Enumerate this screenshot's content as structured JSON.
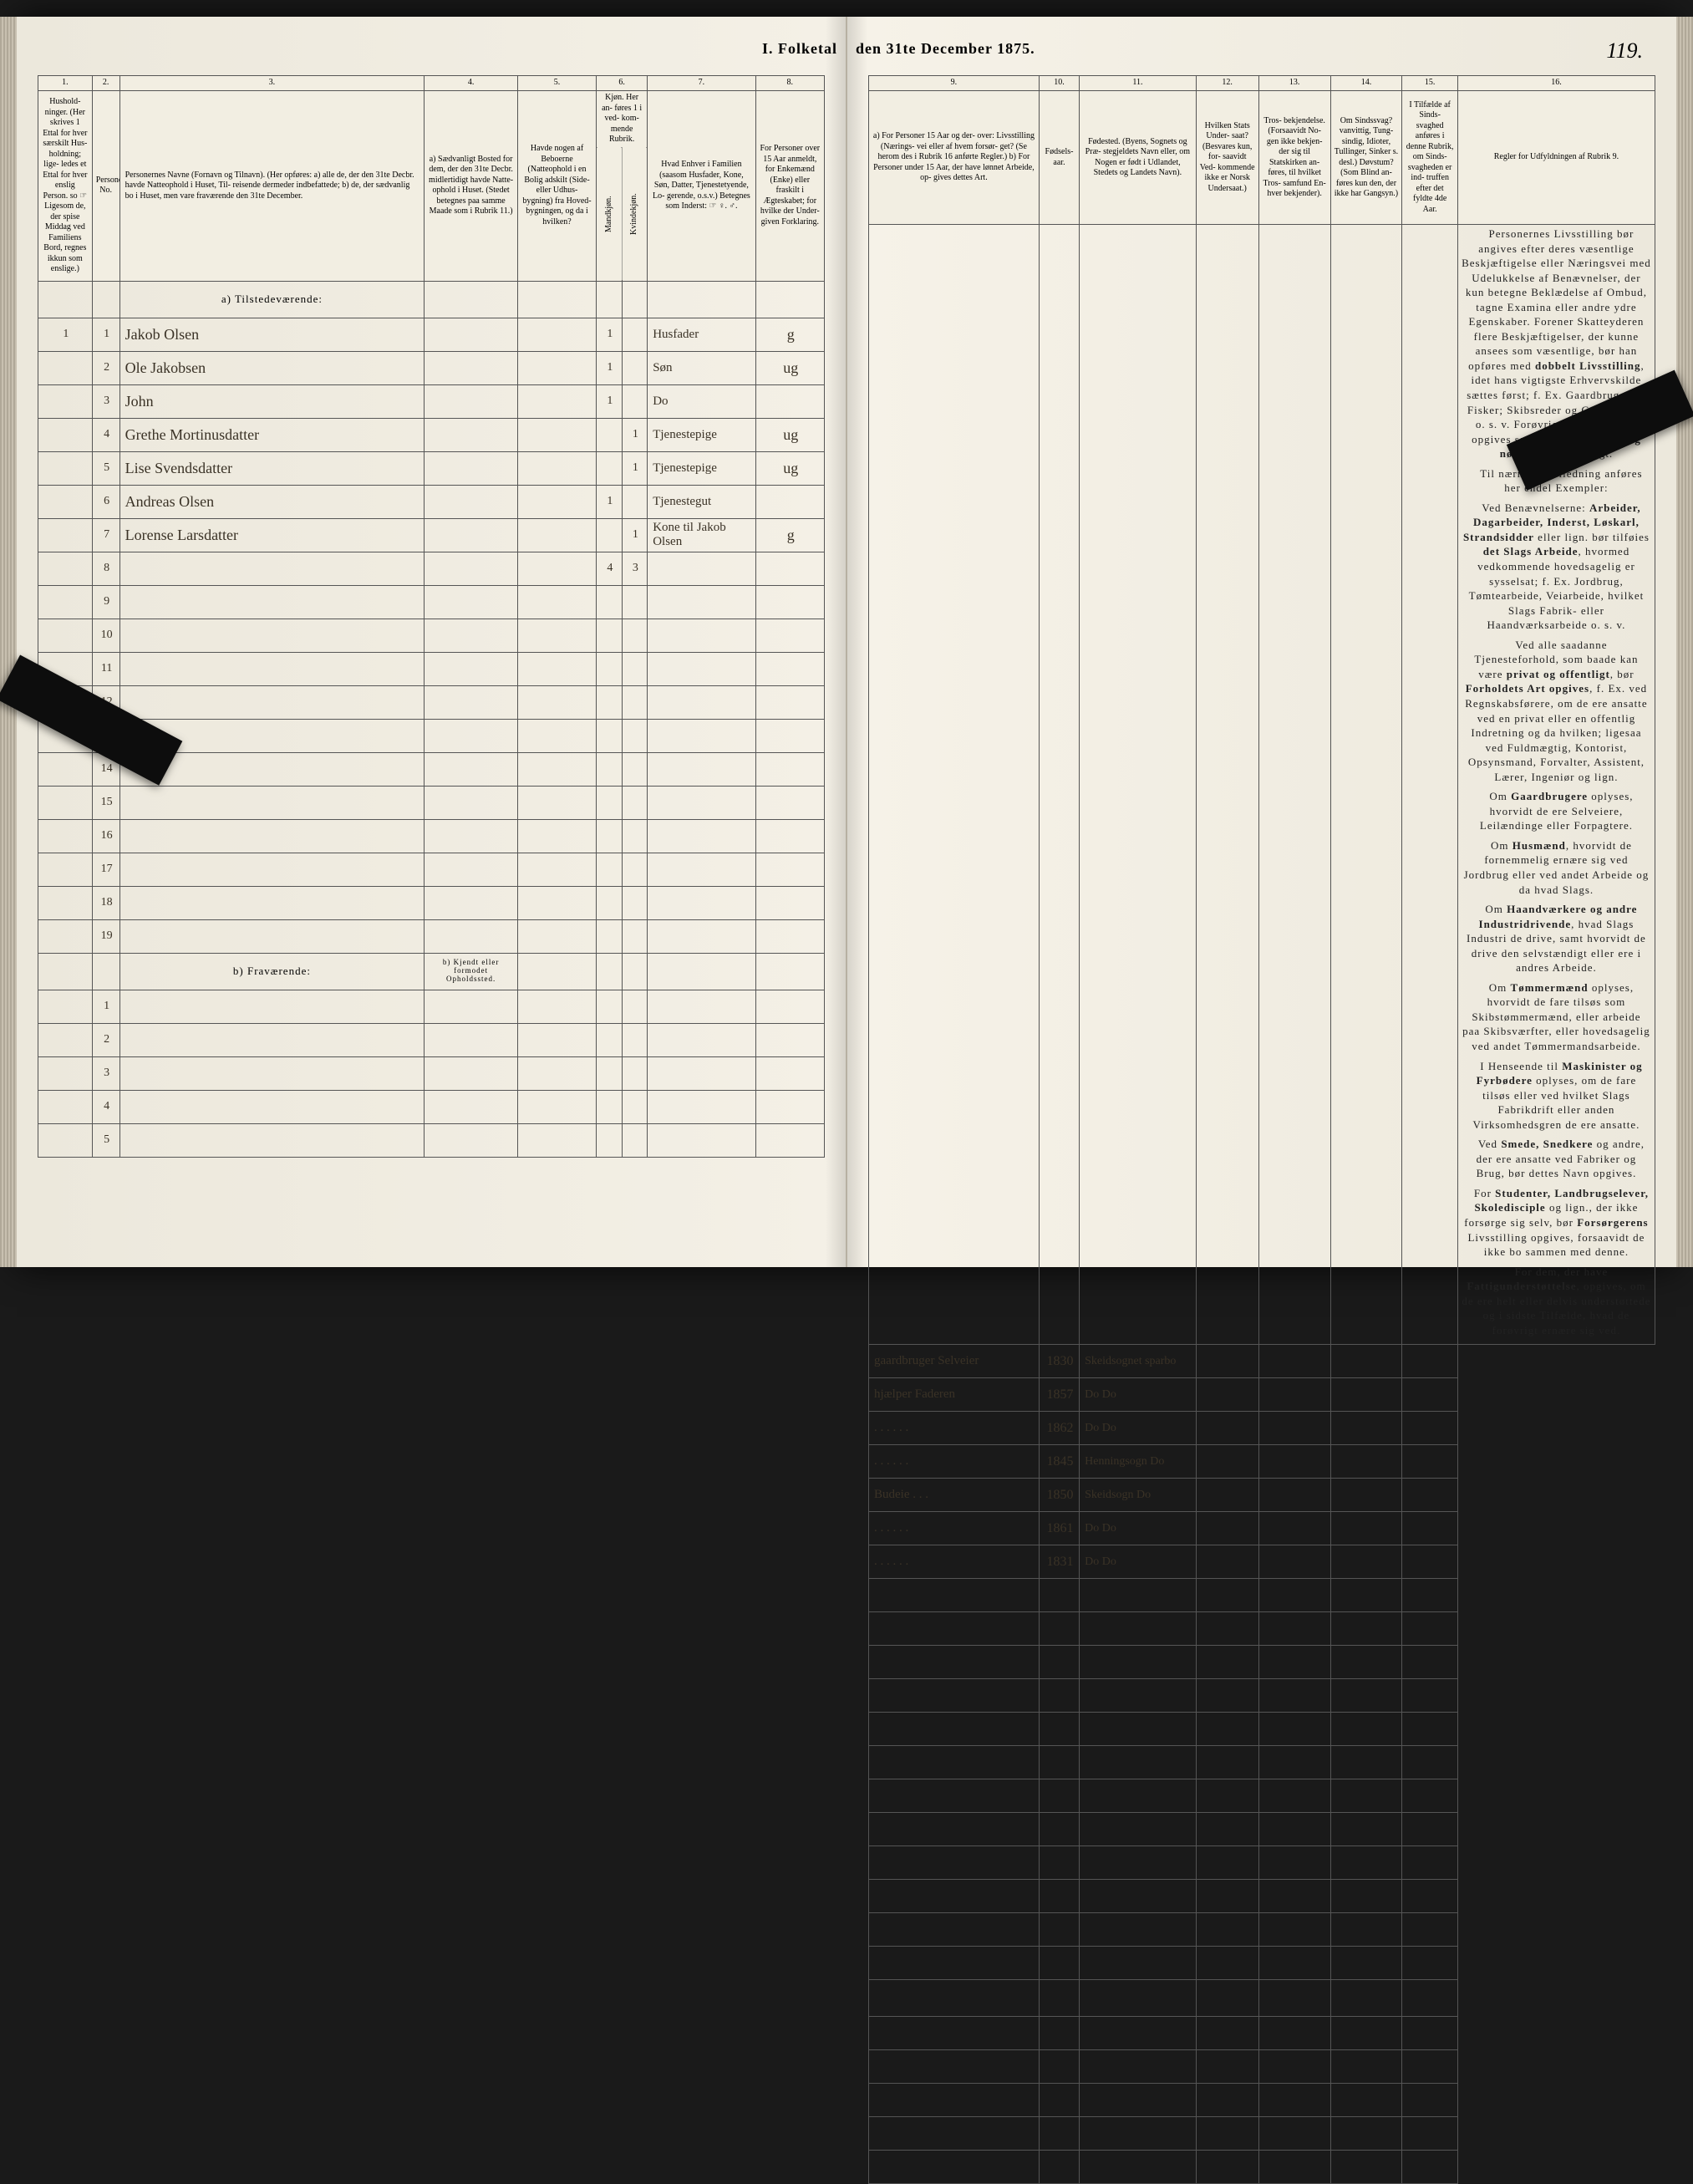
{
  "title_left": "I.  Folketal",
  "title_right": "den 31te December 1875.",
  "page_number": "119.",
  "columns_left": {
    "c1": "1.",
    "c2": "2.",
    "c3": "3.",
    "c4": "4.",
    "c5": "5.",
    "c6": "6.",
    "c7": "7.",
    "c8": "8."
  },
  "columns_right": {
    "c9": "9.",
    "c10": "10.",
    "c11": "11.",
    "c12": "12.",
    "c13": "13.",
    "c14": "14.",
    "c15": "15.",
    "c16": "16."
  },
  "headers_left": {
    "h1": "Hushold-\nninger.\n(Her skrives 1\nEttal for hver\nsærskilt Hus-\nholdning; lige-\nledes et Ettal for\nhver enslig\nPerson. so\n☞ Ligesom de,\nder spise Middag\nved Familiens\nBord, regnes ikkun\nsom enslige.)",
    "h2": "Personernes\nNo.",
    "h3": "Personernes Navne (Fornavn og Tilnavn).\n(Her opføres:\na) alle de, der den 31te Decbr. havde Natteophold i Huset, Til-\nreisende dermeder indbefattede;\nb) de, der sædvanlig bo i Huset, men vare fraværende\nden 31te December.",
    "h4": "a) Sædvanligt\nBosted for\ndem, der den\n31te Decbr.\nmidlertidigt\nhavde Natte-\nophold i Huset.\n(Stedet betegnes\npaa samme Maade\nsom i Rubrik 11.)",
    "h5": "Havde nogen\naf Beboerne\n(Natteophold\ni en Bolig\nadskilt (Side-\neller Udhus-\nbygning)\nfra Hoved-\nbygningen,\nog da i\nhvilken?",
    "h6": "Kjøn.\nHer an-\nføres 1\ni ved-\nkom-\nmende\nRubrik.",
    "h6a": "Mandkjøn.",
    "h6b": "Kvindekjøn.",
    "h7": "Hvad Enhver\ni Familien\n(saasom Husfader,\nKone, Søn, Datter,\nTjenestetyende, Lo-\ngerende, o.s.v.)\n\nBetegnes som\nInderst:\n☞ ♀. ♂.",
    "h8": "For Personer\nover 15 Aar\nanmeldt, for\nEnkemænd\n(Enke) eller\nfraskilt i\nÆgteskabet; for\nhvilke der\nUnder-\ngiven Forklaring."
  },
  "headers_right": {
    "h9": "a) For Personer 15 Aar og der-\nover: Livsstilling (Nærings-\nvei eller af hvem forsør-\nget? (Se herom des i Rubrik 16\nanførte Regler.)\nb) For Personer under 15 Aar,\nder have lønnet Arbeide, op-\ngives dettes Art.",
    "h10": "Fødsels-\naar.",
    "h11": "Fødested.\n(Byens, Sognets og Præ-\nstegjeldets Navn eller, om\nNogen er født i Udlandet,\nStedets og Landets\nNavn).",
    "h12": "Hvilken\nStats Under-\nsaat?\n(Besvares kun, for-\nsaavidt Ved-\nkommende\nikke er\nNorsk\nUndersaat.)",
    "h13": "Tros-\nbekjendelse.\n(Forsaavidt No-\ngen ikke bekjen-\nder sig til\nStatskirken an-\nføres, til\nhvilket Tros-\nsamfund En-\nhver bekjender).",
    "h14": "Om\nSindssvag?\nvanvittig, Tung-\nsindig, Idioter,\nTullinger,\nSinker s. desl.)\nDøvstum?\n(Som Blind an-\nføres kun den,\nder ikke har\nGangsyn.)",
    "h15": "I Tilfælde\naf Sinds-\nsvaghed\nanføres\ni denne\nRubrik,\nom Sinds-\nsvagheden\ner ind-\ntruffen\nefter det\nfyldte\n4de Aar.",
    "h16": "Regler for Udfyldningen\naf\nRubrik 9."
  },
  "section_a": "a)  Tilstedeværende:",
  "section_b": "b)  Fraværende:",
  "section_b_note": "b) Kjendt eller\nformodet\nOpholdssted.",
  "rows": [
    {
      "hh": "1",
      "no": "1",
      "name": "Jakob Olsen",
      "c4": "",
      "c5": "",
      "m": "1",
      "k": "",
      "rel": "Husfader",
      "ms": "g",
      "occ": "gaardbruger Selveier",
      "yr": "1830",
      "bp": "Skeidsognet sparbo"
    },
    {
      "hh": "",
      "no": "2",
      "name": "Ole Jakobsen",
      "c4": "",
      "c5": "",
      "m": "1",
      "k": "",
      "rel": "Søn",
      "ms": "ug",
      "occ": "hjælper Faderen",
      "yr": "1857",
      "bp": "Do     Do"
    },
    {
      "hh": "",
      "no": "3",
      "name": "John",
      "c4": "",
      "c5": "",
      "m": "1",
      "k": "",
      "rel": "Do",
      "ms": "",
      "occ": ". . . . . .",
      "yr": "1862",
      "bp": "Do     Do"
    },
    {
      "hh": "",
      "no": "4",
      "name": "Grethe Mortinusdatter",
      "c4": "",
      "c5": "",
      "m": "",
      "k": "1",
      "rel": "Tjenestepige",
      "ms": "ug",
      "occ": ". . . . . .",
      "yr": "1845",
      "bp": "Henningsogn Do"
    },
    {
      "hh": "",
      "no": "5",
      "name": "Lise Svendsdatter",
      "c4": "",
      "c5": "",
      "m": "",
      "k": "1",
      "rel": "Tjenestepige",
      "ms": "ug",
      "occ": "Budeie . . .",
      "yr": "1850",
      "bp": "Skeidsogn Do"
    },
    {
      "hh": "",
      "no": "6",
      "name": "Andreas Olsen",
      "c4": "",
      "c5": "",
      "m": "1",
      "k": "",
      "rel": "Tjenestegut",
      "ms": "",
      "occ": ". . . . . .",
      "yr": "1861",
      "bp": "Do     Do"
    },
    {
      "hh": "",
      "no": "7",
      "name": "Lorense Larsdatter",
      "c4": "",
      "c5": "",
      "m": "",
      "k": "1",
      "rel": "Kone til Jakob Olsen",
      "ms": "g",
      "occ": ". . . . . .",
      "yr": "1831",
      "bp": "Do     Do"
    }
  ],
  "totals": {
    "m": "4",
    "k": "3"
  },
  "blank_rows_a": 12,
  "blank_rows_b": 5,
  "rules_text": "Personernes Livsstilling bør angives efter deres væsentlige Beskjæftigelse eller Næringsvei med Udelukkelse af Benævnelser, der kun betegne Beklædelse af Ombud, tagne Examina eller andre ydre Egenskaber. Forener Skatteyderen flere Beskjæftigelser, der kunne ansees som væsentlige, bør han opføres med <b>dobbelt Livsstilling</b>, idet hans vigtigste Erhvervskilde sættes først; f. Ex. Gaardbruger og Fisker; Skibsreder og Gaardbruger o. s. v. Forøvrigt bør Stillingen opgives saa <b>bestemt, specielt og nøiagtigt</b> som muligt.\n\nTil nærmere Veiledning anføres her endel Exempler:\n\nVed Benævnelserne: <b>Arbeider, Dagarbeider, Inderst, Løskarl, Strandsidder</b> eller lign. bør tilføies <b>det Slags Arbeide</b>, hvormed vedkommende hovedsagelig er sysselsat; f. Ex. Jordbrug, Tømtearbeide, Veiarbeide, hvilket Slags Fabrik- eller Haandværksarbeide o. s. v.\n\nVed alle saadanne Tjenesteforhold, som baade kan være <b>privat og offentligt</b>, bør <b>Forholdets Art opgives</b>, f. Ex. ved Regnskabsførere, om de ere ansatte ved en privat eller en offentlig Indretning og da hvilken; ligesaa ved Fuldmægtig, Kontorist, Opsynsmand, Forvalter, Assistent, Lærer, Ingeniør og lign.\n\nOm <b>Gaardbrugere</b> oplyses, hvorvidt de ere Selveiere, Leilændinge eller Forpagtere.\n\nOm <b>Husmænd</b>, hvorvidt de fornemmelig ernære sig ved Jordbrug eller ved andet Arbeide og da hvad Slags.\n\nOm <b>Haandværkere og andre Industridrivende</b>, hvad Slags Industri de drive, samt hvorvidt de drive den selvstændigt eller ere i andres Arbeide.\n\nOm <b>Tømmermænd</b> oplyses, hvorvidt de fare tilsøs som Skibstømmermænd, eller arbeide paa Skibsværfter, eller hovedsagelig ved andet Tømmermandsarbeide.\n\nI Henseende til <b>Maskinister og Fyrbødere</b> oplyses, om de fare tilsøs eller ved hvilket Slags Fabrikdrift eller anden Virksomhedsgren de ere ansatte.\n\nVed <b>Smede, Snedkere</b> og andre, der ere ansatte ved Fabriker og Brug, bør dettes Navn opgives.\n\nFor <b>Studenter, Landbrugselever, Skoledisciple</b> og lign., der ikke forsørge sig selv, bør <b>Forsørgerens</b> Livsstilling opgives, forsaavidt de ikke bo sammen med denne.\n\nFor dem, der have <b>Fattigunderstøttelse</b>, opgives, om de ere helt eller delvis understøttede og i sidste Tilfælde, hvad de forøvrigt ernære sig ved."
}
